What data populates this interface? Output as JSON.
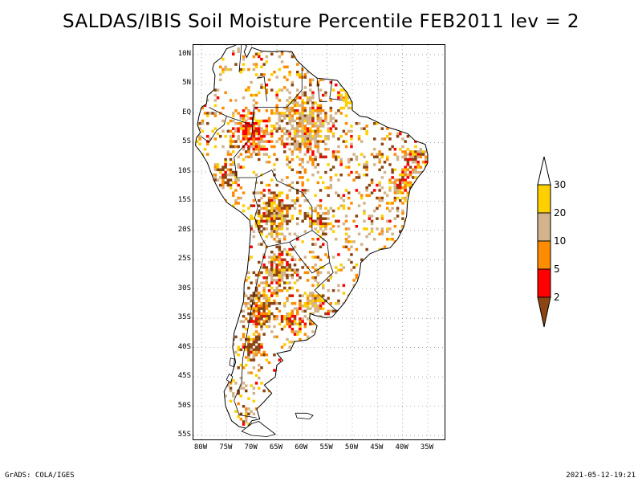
{
  "title": "SALDAS/IBIS Soil Moisture Percentile FEB2011 lev = 2",
  "map": {
    "region": "South America",
    "lat_labels": [
      "10N",
      "5N",
      "EQ",
      "5S",
      "10S",
      "15S",
      "20S",
      "25S",
      "30S",
      "35S",
      "40S",
      "45S",
      "50S",
      "55S"
    ],
    "lat_values": [
      10,
      5,
      0,
      -5,
      -10,
      -15,
      -20,
      -25,
      -30,
      -35,
      -40,
      -45,
      -50,
      -55
    ],
    "lon_labels": [
      "80W",
      "75W",
      "70W",
      "65W",
      "60W",
      "55W",
      "50W",
      "45W",
      "40W",
      "35W"
    ],
    "lon_values": [
      -80,
      -75,
      -70,
      -65,
      -60,
      -55,
      -50,
      -45,
      -40,
      -35
    ],
    "lon_range": [
      -81,
      -31
    ],
    "lat_range": [
      12,
      -56
    ],
    "grid": "dotted"
  },
  "legend": {
    "labels": [
      "30",
      "20",
      "10",
      "5",
      "2"
    ],
    "colors": {
      "above_30": "#ffffff",
      "20_30": "#ffd000",
      "10_20": "#d2b48c",
      "5_10": "#ff8c00",
      "2_5": "#ff0000",
      "below_2": "#8b4513"
    },
    "orientation": "vertical",
    "placement": "right"
  },
  "footer": {
    "left": "GrADS: COLA/IGES",
    "right": "2021-05-12-19:21"
  }
}
